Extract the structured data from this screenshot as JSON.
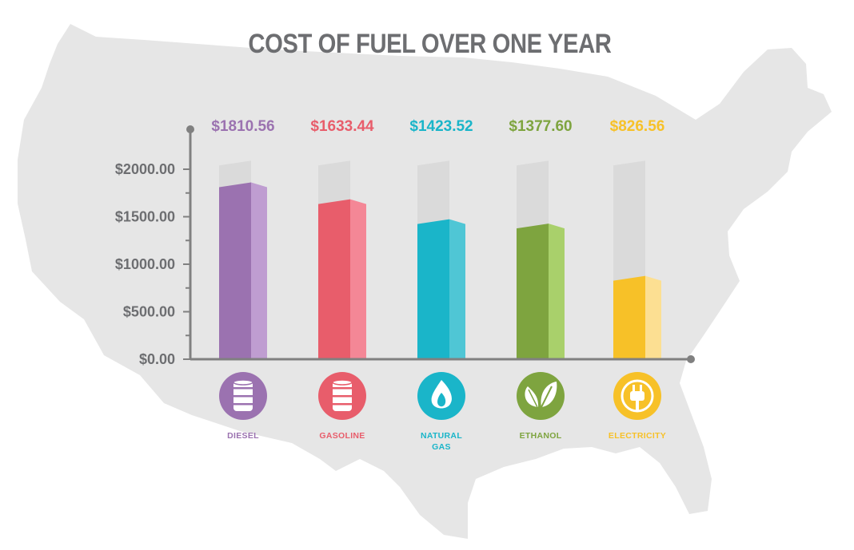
{
  "chart_data": {
    "type": "bar",
    "title": "COST OF FUEL OVER ONE YEAR",
    "xlabel": "",
    "ylabel": "",
    "categories": [
      "DIESEL",
      "GASOLINE",
      "NATURAL GAS",
      "ETHANOL",
      "ELECTRICITY"
    ],
    "values": [
      1810.56,
      1633.44,
      1423.52,
      1377.6,
      826.56
    ],
    "value_labels": [
      "$1810.56",
      "$1633.44",
      "$1423.52",
      "$1377.60",
      "$826.56"
    ],
    "ylim": [
      0,
      2000
    ],
    "y_ticks": [
      0,
      500,
      1000,
      1500,
      2000
    ],
    "y_tick_labels": [
      "$0.00",
      "$500.00",
      "$1000.00",
      "$1500.00",
      "$2000.00"
    ],
    "grid": false,
    "legend": "none",
    "colors": {
      "DIESEL": {
        "front": "#9b72b0",
        "side": "#bf9dd1"
      },
      "GASOLINE": {
        "front": "#e85d6b",
        "side": "#f48796"
      },
      "NATURAL GAS": {
        "front": "#1ab5c9",
        "side": "#4fc6d5"
      },
      "ETHANOL": {
        "front": "#7ea43f",
        "side": "#a9d06b"
      },
      "ELECTRICITY": {
        "front": "#f7c128",
        "side": "#fcdf92"
      }
    },
    "icons": [
      "oil-barrel-icon",
      "oil-barrel-icon",
      "flame-icon",
      "leaf-icon",
      "electric-plug-icon"
    ]
  },
  "style": {
    "title_color": "#6d6e71",
    "axis_color": "#808080",
    "map_color": "#e6e6e6",
    "track_front": "#dadada",
    "track_side": "#e6e6e6"
  }
}
